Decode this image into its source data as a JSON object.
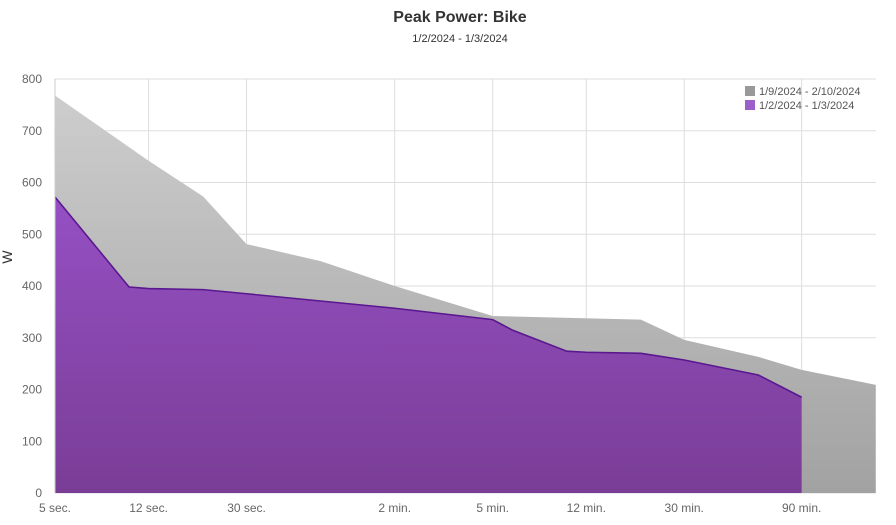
{
  "chart_data": {
    "type": "area",
    "title": "Peak Power: Bike",
    "subtitle": "1/2/2024 - 1/3/2024",
    "ylabel": "W",
    "xlabel": "",
    "x_scale": "log",
    "ylim": [
      0,
      800
    ],
    "yticks": [
      0,
      100,
      200,
      300,
      400,
      500,
      600,
      700,
      800
    ],
    "xticks": [
      {
        "seconds": 5,
        "label": "5 sec."
      },
      {
        "seconds": 12,
        "label": "12 sec."
      },
      {
        "seconds": 30,
        "label": "30 sec."
      },
      {
        "seconds": 120,
        "label": "2 min."
      },
      {
        "seconds": 300,
        "label": "5 min."
      },
      {
        "seconds": 720,
        "label": "12 min."
      },
      {
        "seconds": 1800,
        "label": "30 min."
      },
      {
        "seconds": 5400,
        "label": "90 min."
      }
    ],
    "grid": true,
    "legend_position": "top-right",
    "series": [
      {
        "name": "1/9/2024 - 2/10/2024",
        "color": "#999999",
        "x": [
          5,
          12,
          20,
          30,
          60,
          120,
          300,
          1200,
          1800,
          3600,
          5400,
          10800
        ],
        "values": [
          768,
          642,
          573,
          481,
          448,
          400,
          342,
          335,
          296,
          263,
          238,
          209
        ]
      },
      {
        "name": "1/2/2024 - 1/3/2024",
        "color": "#9c5ec8",
        "x": [
          5,
          10,
          12,
          20,
          30,
          60,
          120,
          300,
          360,
          600,
          720,
          1200,
          1800,
          3600,
          5400
        ],
        "values": [
          572,
          398,
          395,
          393,
          385,
          371,
          357,
          335,
          315,
          274,
          272,
          270,
          257,
          228,
          185
        ]
      }
    ]
  }
}
